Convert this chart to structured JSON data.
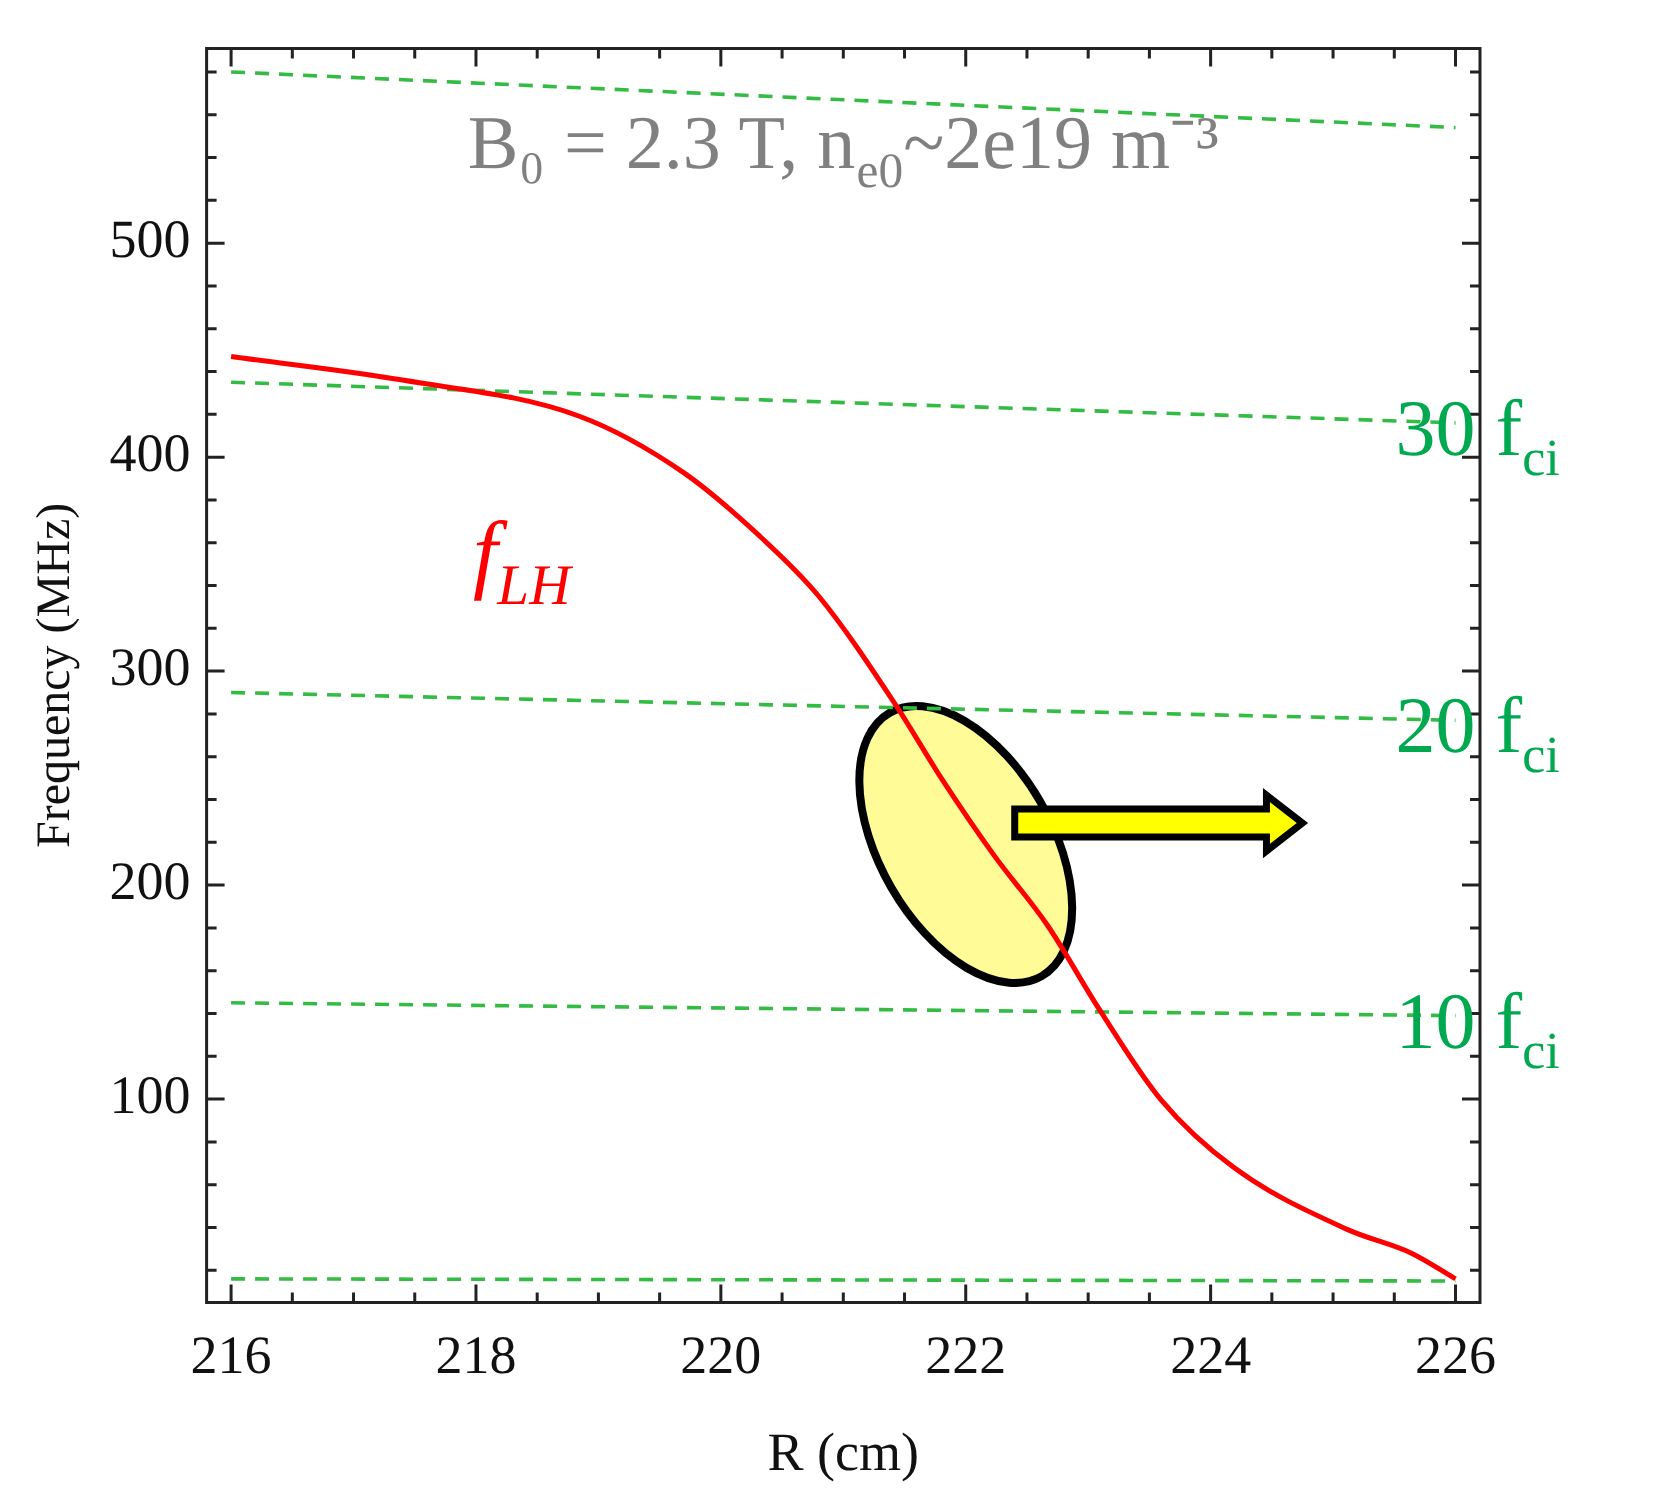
{
  "chart_data": {
    "type": "line",
    "xlabel": "R (cm)",
    "ylabel": "Frequency (MHz)",
    "marker": "none",
    "annotations": [
      "B₀ = 2.3 T, n$_{e0}$~2e19 m⁻³"
    ],
    "xlim": [
      215.8,
      226.2
    ],
    "ylim": [
      5,
      591
    ],
    "xticks": [
      216,
      {
        "value": 216.5,
        "label": null
      },
      {
        "value": 217,
        "label": null
      },
      {
        "value": 217.5,
        "label": null
      },
      218,
      {
        "value": 218.5,
        "label": null
      },
      {
        "value": 219,
        "label": null
      },
      {
        "value": 219.5,
        "label": null
      },
      220,
      {
        "value": 220.5,
        "label": null
      },
      {
        "value": 221,
        "label": null
      },
      {
        "value": 221.5,
        "label": null
      },
      222,
      {
        "value": 222.5,
        "label": null
      },
      {
        "value": 223,
        "label": null
      },
      {
        "value": 223.5,
        "label": null
      },
      224,
      {
        "value": 224.5,
        "label": null
      },
      {
        "value": 225,
        "label": null
      },
      {
        "value": 225.5,
        "label": null
      },
      226
    ],
    "yticks": [
      {
        "value": 20,
        "label": null
      },
      {
        "value": 40,
        "label": null
      },
      {
        "value": 60,
        "label": null
      },
      {
        "value": 80,
        "label": null
      },
      100,
      {
        "value": 120,
        "label": null
      },
      {
        "value": 140,
        "label": null
      },
      {
        "value": 160,
        "label": null
      },
      {
        "value": 180,
        "label": null
      },
      200,
      {
        "value": 220,
        "label": null
      },
      {
        "value": 240,
        "label": null
      },
      {
        "value": 260,
        "label": null
      },
      {
        "value": 280,
        "label": null
      },
      300,
      {
        "value": 320,
        "label": null
      },
      {
        "value": 340,
        "label": null
      },
      {
        "value": 360,
        "label": null
      },
      {
        "value": 380,
        "label": null
      },
      400,
      {
        "value": 420,
        "label": null
      },
      {
        "value": 440,
        "label": null
      },
      {
        "value": 460,
        "label": null
      },
      {
        "value": 480,
        "label": null
      },
      500,
      {
        "value": 520,
        "label": null
      },
      {
        "value": 540,
        "label": null
      },
      {
        "value": 560,
        "label": null
      },
      {
        "value": 580,
        "label": null
      }
    ],
    "series": [
      {
        "name": "f$_{LH}$",
        "color": "#ff0000",
        "line_style": "solid",
        "x": [
          216,
          217.4,
          218.85,
          219.69,
          220.3,
          220.8,
          221.43,
          221.8,
          222.23,
          222.67,
          223.09,
          223.59,
          224.19,
          225.12,
          225.64,
          226
        ],
        "values": [
          447,
          436,
          419,
          393,
          364,
          335,
          284,
          250,
          214,
          181,
          142,
          100,
          68,
          39,
          28,
          16
        ]
      },
      {
        "color": "#33bb44",
        "line_style": "dashed",
        "x": [
          216,
          226
        ],
        "values": [
          580,
          554
        ]
      },
      {
        "name": "30 f$_{ci}$",
        "color": "#33bb44",
        "line_style": "dashed",
        "x": [
          216,
          226
        ],
        "values": [
          435,
          416
        ]
      },
      {
        "name": "20 f$_{ci}$",
        "color": "#33bb44",
        "line_style": "dashed",
        "x": [
          216,
          226
        ],
        "values": [
          290,
          277
        ]
      },
      {
        "name": "10 f$_{ci}$",
        "color": "#33bb44",
        "line_style": "dashed",
        "x": [
          216,
          226
        ],
        "values": [
          145,
          139
        ]
      },
      {
        "color": "#33bb44",
        "line_style": "dashed",
        "x": [
          216,
          226
        ],
        "values": [
          16,
          15
        ]
      }
    ]
  }
}
